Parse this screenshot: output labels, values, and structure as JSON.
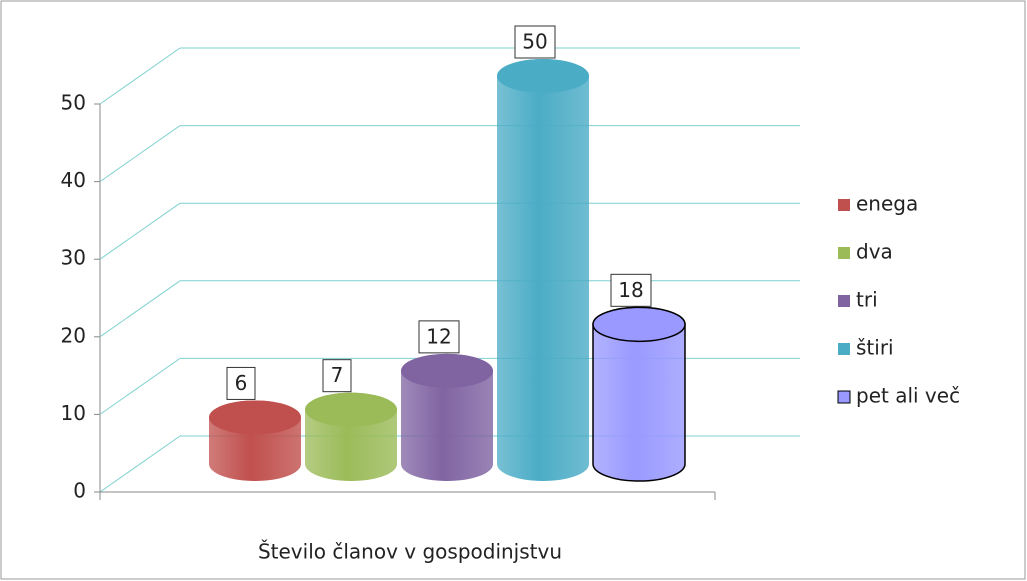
{
  "chart_data": {
    "type": "bar3d",
    "categories": [
      "Število članov v gospodinjstvu"
    ],
    "series": [
      {
        "name": "enega",
        "color": "#c0504d",
        "values": [
          6
        ]
      },
      {
        "name": "dva",
        "color": "#9bbb59",
        "values": [
          7
        ]
      },
      {
        "name": "tri",
        "color": "#8064a2",
        "values": [
          12
        ]
      },
      {
        "name": "štiri",
        "color": "#4bacc6",
        "values": [
          50
        ]
      },
      {
        "name": "pet ali več",
        "color": "#9999ff",
        "values": [
          18
        ]
      }
    ],
    "ylim": [
      0,
      50
    ],
    "yticks": [
      0,
      10,
      20,
      30,
      40,
      50
    ],
    "grid": true,
    "legend": "right"
  }
}
